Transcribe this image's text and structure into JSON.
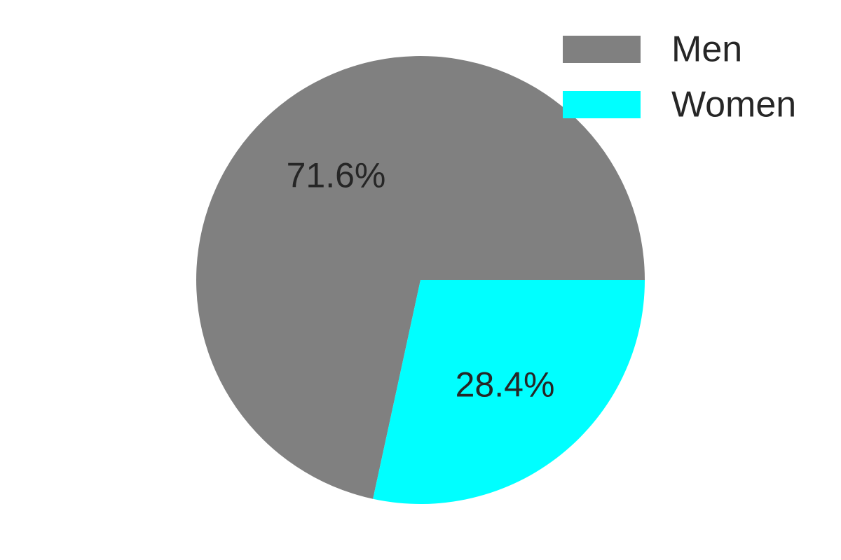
{
  "chart_data": {
    "type": "pie",
    "categories": [
      "Men",
      "Women"
    ],
    "values": [
      71.6,
      28.4
    ],
    "value_labels": [
      "71.6%",
      "28.4%"
    ],
    "colors": [
      "#808080",
      "#00ffff"
    ],
    "start_angle_deg": 0,
    "direction": "counterclockwise",
    "legend": {
      "position": "top-right",
      "entries": [
        "Men",
        "Women"
      ]
    }
  }
}
